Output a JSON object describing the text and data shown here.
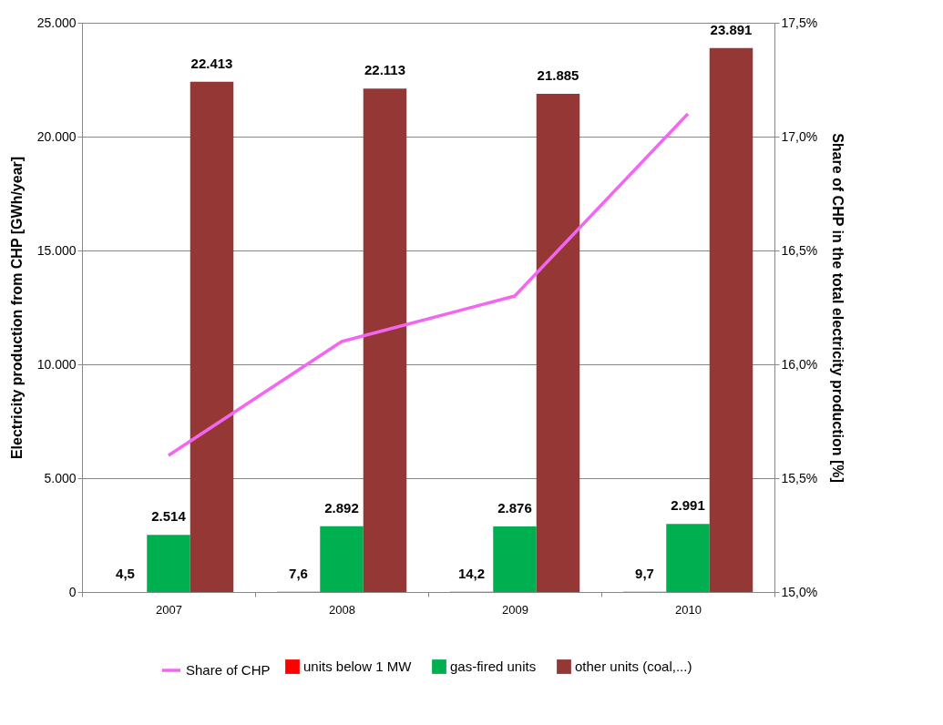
{
  "chart_data": {
    "type": "bar",
    "categories": [
      "2007",
      "2008",
      "2009",
      "2010"
    ],
    "ylabel": "Electricity production from CHP [GWh/year]",
    "y2label": "Share of CHP in the total  electricity production [%]",
    "ylim": [
      0,
      25000
    ],
    "yticks": [
      {
        "value": 0,
        "label": "0"
      },
      {
        "value": 5000,
        "label": "5.000"
      },
      {
        "value": 10000,
        "label": "10.000"
      },
      {
        "value": 15000,
        "label": "15.000"
      },
      {
        "value": 20000,
        "label": "20.000"
      },
      {
        "value": 25000,
        "label": "25.000"
      }
    ],
    "y2lim": [
      15,
      17.5
    ],
    "y2ticks": [
      {
        "value": 15,
        "label": "15,0%"
      },
      {
        "value": 15.5,
        "label": "15,5%"
      },
      {
        "value": 16,
        "label": "16,0%"
      },
      {
        "value": 16.5,
        "label": "16,5%"
      },
      {
        "value": 17,
        "label": "17,0%"
      },
      {
        "value": 17.5,
        "label": "17,5%"
      }
    ],
    "series": [
      {
        "name": "units below 1 MW",
        "color": "#ff0000",
        "values": [
          4.5,
          7.6,
          14.2,
          9.7
        ],
        "value_labels": [
          "4,5",
          "7,6",
          "14,2",
          "9,7"
        ]
      },
      {
        "name": "gas-fired units",
        "color": "#00b050",
        "values": [
          2514,
          2892,
          2876,
          2991
        ],
        "value_labels": [
          "2.514",
          "2.892",
          "2.876",
          "2.991"
        ]
      },
      {
        "name": "other units  (coal,...)",
        "color": "#953735",
        "values": [
          22413,
          22113,
          21885,
          23891
        ],
        "value_labels": [
          "22.413",
          "22.113",
          "21.885",
          "23.891"
        ]
      },
      {
        "name": "Share of CHP",
        "type": "line",
        "axis": "y2",
        "color": "#f266f2",
        "values": [
          15.6,
          16.1,
          16.3,
          17.1
        ]
      }
    ],
    "grid": "y",
    "legend": "bottom",
    "marker": "none"
  }
}
